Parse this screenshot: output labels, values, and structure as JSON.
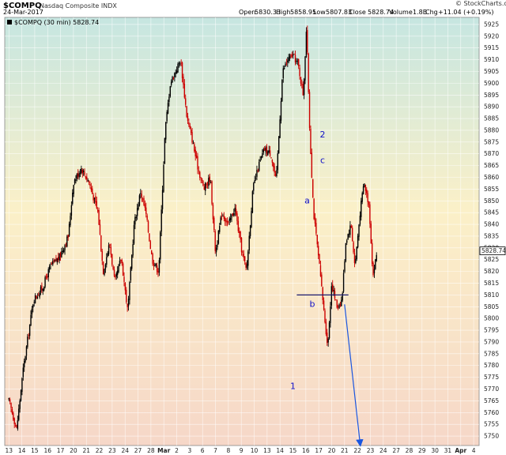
{
  "header": {
    "symbol": "$COMPQ",
    "name": "Nasdaq Composite INDX",
    "date": "24-Mar-2017",
    "open_label": "Open",
    "open": "5830.33",
    "high_label": "High",
    "high": "5858.95",
    "low_label": "Low",
    "low": "5807.83",
    "close_label": "Close",
    "close": "5828.74",
    "volume_label": "Volume",
    "volume": "1.8B",
    "chg_label": "Chg",
    "chg": "+11.04 (+0.19%)",
    "brand": "© StockCharts.com",
    "legend": "$COMPQ (30 min) 5828.74",
    "last_price": "5828.74"
  },
  "colors": {
    "up": "#000000",
    "down": "#cc0000",
    "annotation": "#1010c8",
    "bg_top": "#c6e6e1",
    "bg_mid": "#fbf0c8",
    "bg_bottom": "#f7dcc8"
  },
  "annotations": [
    {
      "text": "2",
      "x": 24.3,
      "y": 5877
    },
    {
      "text": "c",
      "x": 24.3,
      "y": 5866
    },
    {
      "text": "a",
      "x": 23.1,
      "y": 5849
    },
    {
      "text": "b",
      "x": 23.5,
      "y": 5805
    },
    {
      "text": "1",
      "x": 22.0,
      "y": 5770
    }
  ],
  "chart_data": {
    "type": "candlestick",
    "interval": "30 min",
    "series_name": "$COMPQ (30 min)",
    "ylim": [
      5746,
      5928
    ],
    "y_ticks": [
      5750,
      5755,
      5760,
      5765,
      5770,
      5775,
      5780,
      5785,
      5790,
      5795,
      5800,
      5805,
      5810,
      5815,
      5820,
      5825,
      5830,
      5835,
      5840,
      5845,
      5850,
      5855,
      5860,
      5865,
      5870,
      5875,
      5880,
      5885,
      5890,
      5895,
      5900,
      5905,
      5910,
      5915,
      5920,
      5925
    ],
    "x_tick_labels": [
      "13",
      "14",
      "15",
      "16",
      "17",
      "20",
      "21",
      "22",
      "23",
      "24",
      "27",
      "28",
      "Mar",
      "2",
      "3",
      "6",
      "7",
      "8",
      "9",
      "10",
      "13",
      "14",
      "15",
      "16",
      "17",
      "20",
      "21",
      "22",
      "23",
      "24",
      "27",
      "28",
      "29",
      "30",
      "31",
      "Apr",
      "4"
    ],
    "x_tick_positions": [
      0,
      1,
      2,
      3,
      4,
      5,
      6,
      7,
      8,
      9,
      10,
      11,
      12,
      13,
      14,
      15,
      16,
      17,
      18,
      19,
      20,
      21,
      22,
      23,
      24,
      25,
      26,
      27,
      28,
      29,
      30,
      31,
      32,
      33,
      34,
      35,
      36
    ],
    "price_path": [
      {
        "x": 0.0,
        "y": 5765
      },
      {
        "x": 0.6,
        "y": 5753
      },
      {
        "x": 1.1,
        "y": 5778
      },
      {
        "x": 1.9,
        "y": 5808
      },
      {
        "x": 2.6,
        "y": 5813
      },
      {
        "x": 3.2,
        "y": 5822
      },
      {
        "x": 3.9,
        "y": 5826
      },
      {
        "x": 4.6,
        "y": 5835
      },
      {
        "x": 5.0,
        "y": 5858
      },
      {
        "x": 5.6,
        "y": 5864
      },
      {
        "x": 6.2,
        "y": 5858
      },
      {
        "x": 6.9,
        "y": 5845
      },
      {
        "x": 7.3,
        "y": 5820
      },
      {
        "x": 7.8,
        "y": 5832
      },
      {
        "x": 8.2,
        "y": 5815
      },
      {
        "x": 8.7,
        "y": 5826
      },
      {
        "x": 9.2,
        "y": 5803
      },
      {
        "x": 9.7,
        "y": 5840
      },
      {
        "x": 10.2,
        "y": 5854
      },
      {
        "x": 10.6,
        "y": 5845
      },
      {
        "x": 11.1,
        "y": 5825
      },
      {
        "x": 11.6,
        "y": 5820
      },
      {
        "x": 12.1,
        "y": 5880
      },
      {
        "x": 12.5,
        "y": 5900
      },
      {
        "x": 12.9,
        "y": 5905
      },
      {
        "x": 13.3,
        "y": 5910
      },
      {
        "x": 13.8,
        "y": 5885
      },
      {
        "x": 14.2,
        "y": 5876
      },
      {
        "x": 14.6,
        "y": 5865
      },
      {
        "x": 15.1,
        "y": 5855
      },
      {
        "x": 15.6,
        "y": 5860
      },
      {
        "x": 16.0,
        "y": 5828
      },
      {
        "x": 16.5,
        "y": 5845
      },
      {
        "x": 17.0,
        "y": 5840
      },
      {
        "x": 17.5,
        "y": 5847
      },
      {
        "x": 18.0,
        "y": 5830
      },
      {
        "x": 18.4,
        "y": 5820
      },
      {
        "x": 18.9,
        "y": 5855
      },
      {
        "x": 19.4,
        "y": 5866
      },
      {
        "x": 19.8,
        "y": 5872
      },
      {
        "x": 20.3,
        "y": 5870
      },
      {
        "x": 20.7,
        "y": 5858
      },
      {
        "x": 21.2,
        "y": 5905
      },
      {
        "x": 21.6,
        "y": 5910
      },
      {
        "x": 22.0,
        "y": 5912
      },
      {
        "x": 22.4,
        "y": 5908
      },
      {
        "x": 22.8,
        "y": 5895
      },
      {
        "x": 23.05,
        "y": 5924
      },
      {
        "x": 23.3,
        "y": 5880
      },
      {
        "x": 23.6,
        "y": 5845
      },
      {
        "x": 24.0,
        "y": 5825
      },
      {
        "x": 24.4,
        "y": 5803
      },
      {
        "x": 24.7,
        "y": 5788
      },
      {
        "x": 25.0,
        "y": 5815
      },
      {
        "x": 25.4,
        "y": 5805
      },
      {
        "x": 25.8,
        "y": 5808
      },
      {
        "x": 26.1,
        "y": 5833
      },
      {
        "x": 26.5,
        "y": 5840
      },
      {
        "x": 26.8,
        "y": 5822
      },
      {
        "x": 27.2,
        "y": 5845
      },
      {
        "x": 27.5,
        "y": 5858
      },
      {
        "x": 27.9,
        "y": 5848
      },
      {
        "x": 28.2,
        "y": 5818
      },
      {
        "x": 28.5,
        "y": 5828
      }
    ],
    "lines": [
      {
        "name": "support-line",
        "x1": 22.3,
        "y1": 5810,
        "x2": 26.3,
        "y2": 5810
      },
      {
        "name": "projection-arrow",
        "x1": 26.0,
        "y1": 5806,
        "x2": 27.2,
        "y2": 5747
      }
    ]
  }
}
